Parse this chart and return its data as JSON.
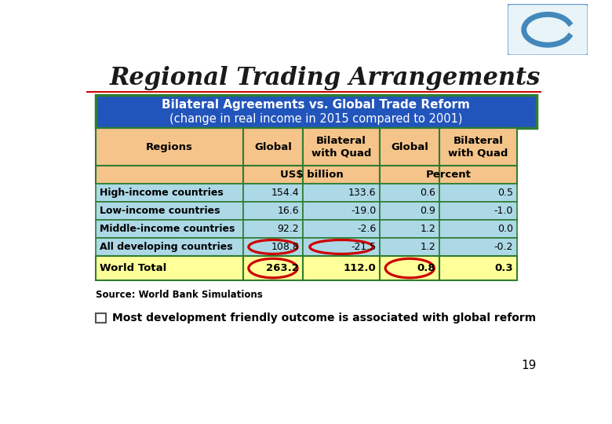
{
  "title": "Regional Trading Arrangements",
  "subtitle_line1": "Bilateral Agreements vs. Global Trade Reform",
  "subtitle_line2": "(change in real income in 2015 compared to 2001)",
  "col_headers": [
    "Regions",
    "Global",
    "Bilateral\nwith Quad",
    "Global",
    "Bilateral\nwith Quad"
  ],
  "rows": [
    [
      "High-income countries",
      "154.4",
      "133.6",
      "0.6",
      "0.5"
    ],
    [
      "Low-income countries",
      "16.6",
      "-19.0",
      "0.9",
      "-1.0"
    ],
    [
      "Middle-income countries",
      "92.2",
      "-2.6",
      "1.2",
      "0.0"
    ],
    [
      "All developing countries",
      "108.8",
      "-21.5",
      "1.2",
      "-0.2"
    ],
    [
      "World Total",
      "263.2",
      "112.0",
      "0.8",
      "0.3"
    ]
  ],
  "source_text": "Source: World Bank Simulations",
  "bullet_text": "Most development friendly outcome is associated with global reform",
  "page_number": "19",
  "bg_color": "#FFFFFF",
  "title_color": "#1a1a1a",
  "subtitle_bg": "#2255BB",
  "subtitle_text_color": "#FFFFFF",
  "header_bg": "#F5C48A",
  "data_row_bg": "#ADD8E6",
  "total_row_bg": "#FFFF99",
  "border_color": "#2E7D32",
  "circle_color": "#CC0000",
  "red_line_color": "#CC0000",
  "logo_bg": "#E8F4F8",
  "logo_border": "#6699CC",
  "logo_c_color": "#4488BB"
}
